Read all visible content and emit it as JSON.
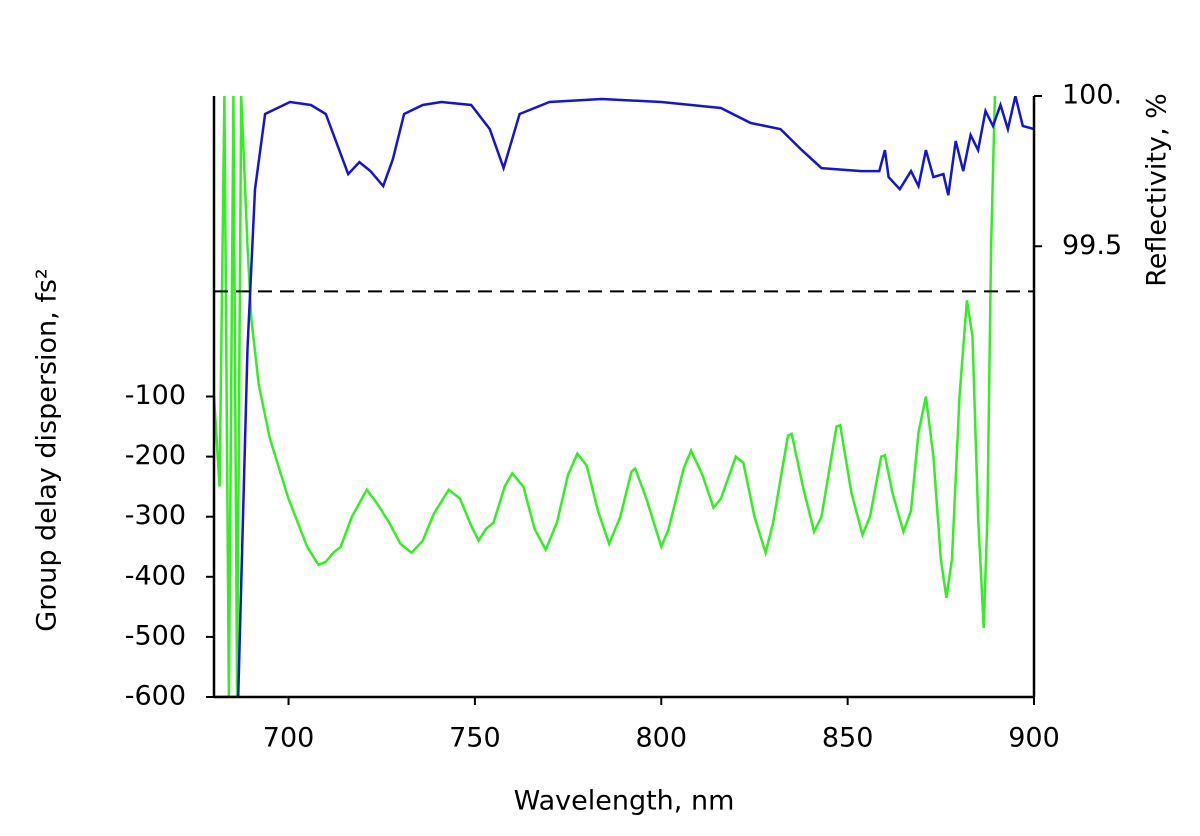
{
  "chart_data": {
    "type": "line",
    "xlabel": "Wavelength, nm",
    "ylabel": "Group delay dispersion, fs²",
    "y2label": "Reflectivity, %",
    "xlim": [
      680,
      900
    ],
    "xticks": [
      700,
      750,
      800,
      850,
      900
    ],
    "ylim": [
      -600,
      400
    ],
    "yticks": [
      -600,
      -500,
      -400,
      -300,
      -200,
      -100
    ],
    "y2lim": [
      98,
      100
    ],
    "y2ticks": [
      99.5,
      {
        "value": 100,
        "label": "100."
      }
    ],
    "hline": {
      "value": 75,
      "color": "#000000",
      "dashed": true
    },
    "series": [
      {
        "color": "#33ee22",
        "axis": "y",
        "x": [
          680,
          681.5,
          682.8,
          684,
          685.2,
          686.2,
          687.3,
          688,
          689,
          690,
          692,
          695,
          700,
          705,
          708,
          710,
          712,
          714,
          717,
          721,
          724,
          727,
          730,
          733,
          736,
          739,
          743,
          746,
          749,
          751,
          753,
          755,
          758,
          760,
          763,
          766,
          769,
          772,
          775,
          777.5,
          780,
          783,
          786,
          789,
          792,
          793,
          796,
          800,
          802,
          806,
          808,
          811,
          814,
          816,
          820,
          822,
          825,
          828,
          830,
          834,
          835,
          838,
          841,
          843,
          847,
          848,
          851,
          854,
          856,
          859,
          860,
          862,
          865,
          867,
          869,
          871,
          873,
          875,
          876.5,
          878,
          880,
          882,
          883.5,
          885,
          886.5,
          887.5,
          888.5,
          889.5
        ],
        "values": [
          -100,
          -250,
          400,
          -600,
          400,
          -600,
          400,
          300,
          150,
          30,
          -80,
          -170,
          -270,
          -350,
          -380,
          -375,
          -360,
          -350,
          -300,
          -255,
          -280,
          -310,
          -345,
          -360,
          -340,
          -295,
          -255,
          -270,
          -315,
          -340,
          -320,
          -310,
          -250,
          -228,
          -250,
          -320,
          -355,
          -310,
          -230,
          -195,
          -215,
          -290,
          -345,
          -300,
          -225,
          -220,
          -270,
          -350,
          -320,
          -220,
          -190,
          -230,
          -285,
          -270,
          -200,
          -210,
          -300,
          -360,
          -310,
          -165,
          -162,
          -250,
          -325,
          -300,
          -150,
          -148,
          -260,
          -330,
          -300,
          -200,
          -198,
          -260,
          -325,
          -290,
          -160,
          -100,
          -200,
          -370,
          -435,
          -370,
          -100,
          60,
          0,
          -300,
          -485,
          -300,
          150,
          400
        ]
      },
      {
        "color": "#1515d0",
        "axis": "y2",
        "x": [
          680,
          686.5,
          689,
          691,
          693.7,
          700.4,
          706,
          710,
          713,
          716,
          719,
          722,
          725.4,
          728,
          731,
          736,
          741,
          749,
          754,
          757.7,
          762,
          770,
          784,
          800,
          816,
          824,
          832,
          837.7,
          843,
          853.7,
          858.5,
          860,
          861,
          864,
          867,
          869,
          871,
          873,
          875.7,
          877,
          879,
          881,
          883,
          885,
          887,
          889,
          891,
          893,
          895,
          897,
          900
        ],
        "values": [
          98.0,
          98.0,
          99.16,
          99.69,
          99.94,
          99.98,
          99.97,
          99.94,
          99.84,
          99.74,
          99.78,
          99.75,
          99.7,
          99.79,
          99.94,
          99.97,
          99.98,
          99.97,
          99.89,
          99.76,
          99.94,
          99.98,
          99.99,
          99.98,
          99.96,
          99.91,
          99.89,
          99.82,
          99.76,
          99.75,
          99.75,
          99.82,
          99.73,
          99.69,
          99.75,
          99.7,
          99.82,
          99.73,
          99.74,
          99.67,
          99.85,
          99.75,
          99.87,
          99.82,
          99.95,
          99.9,
          99.97,
          99.89,
          100.0,
          99.9,
          99.89
        ]
      }
    ]
  }
}
